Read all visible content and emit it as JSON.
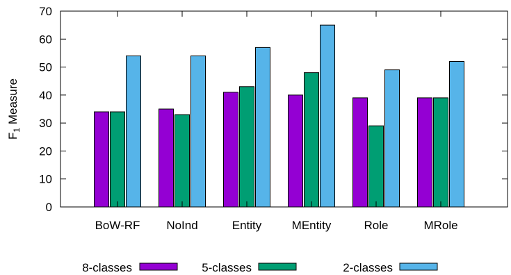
{
  "chart_data": {
    "type": "bar",
    "categories": [
      "BoW-RF",
      "NoInd",
      "Entity",
      "MEntity",
      "Role",
      "MRole"
    ],
    "series": [
      {
        "name": "8-classes",
        "values": [
          34,
          35,
          41,
          40,
          39,
          39
        ],
        "color": "#9400d3"
      },
      {
        "name": "5-classes",
        "values": [
          34,
          33,
          43,
          48,
          29,
          39
        ],
        "color": "#009e73"
      },
      {
        "name": "2-classes",
        "values": [
          54,
          54,
          57,
          65,
          49,
          52
        ],
        "color": "#56b4e9"
      }
    ],
    "title": "",
    "xlabel": "",
    "ylabel": "F",
    "ylabel_sub": "1",
    "ylabel_rest": " Measure",
    "ylim": [
      0,
      70
    ],
    "yticks": [
      "0",
      "10",
      "20",
      "30",
      "40",
      "50",
      "60",
      "70"
    ],
    "grid": false,
    "legend_position": "bottom"
  }
}
